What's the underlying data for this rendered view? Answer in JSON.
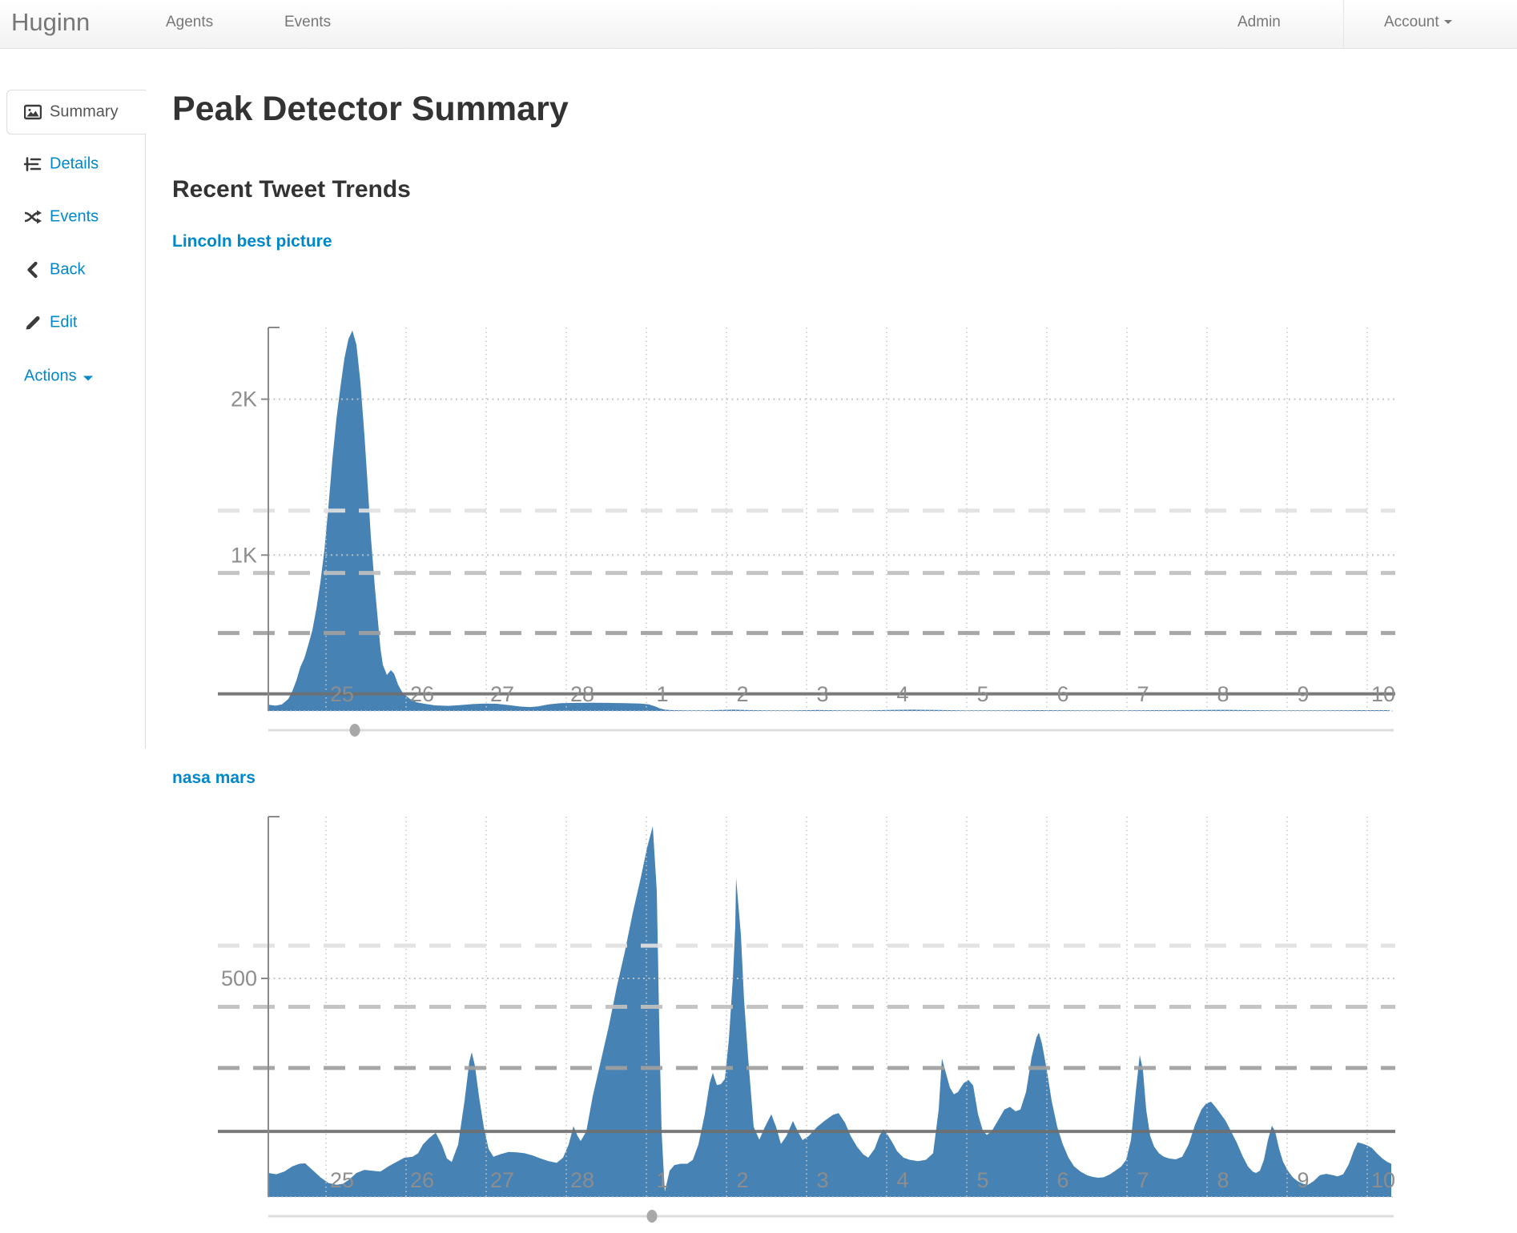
{
  "navbar": {
    "brand": "Huginn",
    "links": [
      {
        "label": "Agents"
      },
      {
        "label": "Events"
      }
    ],
    "right": [
      {
        "label": "Admin"
      },
      {
        "label": "Account"
      }
    ]
  },
  "sidebar": {
    "items": [
      {
        "label": "Summary",
        "icon": "picture-icon",
        "active": true
      },
      {
        "label": "Details",
        "icon": "details-icon"
      },
      {
        "label": "Events",
        "icon": "shuffle-icon"
      },
      {
        "label": "Back",
        "icon": "chevron-left-icon"
      },
      {
        "label": "Edit",
        "icon": "pencil-icon"
      },
      {
        "label": "Actions",
        "icon": "caret-down-icon",
        "dropdown": true
      }
    ]
  },
  "main": {
    "title": "Peak Detector Summary",
    "subtitle": "Recent Tweet Trends"
  },
  "colors": {
    "accent": "#0088cc",
    "area": "#4682B4",
    "axis": "#8a8a8a",
    "tick_label": "#8d8d8d",
    "grid_dotted": "#c8c8c8",
    "slider_track": "#dcdcdc",
    "slider_handle": "#a8a8a8"
  },
  "chart_data": [
    {
      "type": "area",
      "title": "Lincoln best picture",
      "x_axis": {
        "tick_labels": [
          "25",
          "26",
          "27",
          "28",
          "1",
          "2",
          "3",
          "4",
          "5",
          "6",
          "7",
          "8",
          "9",
          "10"
        ]
      },
      "y_axis": {
        "ticks": [
          {
            "label": "2K",
            "value": 2000
          },
          {
            "label": "1K",
            "value": 1000
          }
        ],
        "max": 2460
      },
      "thresholds": {
        "dashed": [
          {
            "value": 1285,
            "color": "#e1e1e1"
          },
          {
            "value": 885,
            "color": "#c0c0c0"
          },
          {
            "value": 500,
            "color": "#a0a0a0"
          }
        ],
        "average": {
          "value": 110,
          "color": "#6f6f6f"
        }
      },
      "peak_marker_day": 0.16,
      "points": [
        [
          -0.91,
          40
        ],
        [
          -0.83,
          34
        ],
        [
          -0.75,
          42
        ],
        [
          -0.67,
          77
        ],
        [
          -0.62,
          128
        ],
        [
          -0.57,
          195
        ],
        [
          -0.52,
          282
        ],
        [
          -0.47,
          339
        ],
        [
          -0.42,
          426
        ],
        [
          -0.37,
          518
        ],
        [
          -0.32,
          656
        ],
        [
          -0.27,
          826
        ],
        [
          -0.22,
          1031
        ],
        [
          -0.17,
          1308
        ],
        [
          -0.12,
          1615
        ],
        [
          -0.07,
          1872
        ],
        [
          -0.02,
          2077
        ],
        [
          0.03,
          2262
        ],
        [
          0.08,
          2385
        ],
        [
          0.13,
          2441
        ],
        [
          0.18,
          2349
        ],
        [
          0.23,
          2108
        ],
        [
          0.28,
          1769
        ],
        [
          0.33,
          1374
        ],
        [
          0.36,
          1118
        ],
        [
          0.41,
          795
        ],
        [
          0.45,
          569
        ],
        [
          0.48,
          400
        ],
        [
          0.51,
          297
        ],
        [
          0.56,
          231
        ],
        [
          0.61,
          262
        ],
        [
          0.65,
          240
        ],
        [
          0.7,
          169
        ],
        [
          0.76,
          113
        ],
        [
          0.85,
          77
        ],
        [
          0.93,
          56
        ],
        [
          1.03,
          46
        ],
        [
          1.16,
          36
        ],
        [
          1.33,
          33
        ],
        [
          1.48,
          38
        ],
        [
          1.63,
          44
        ],
        [
          1.78,
          48
        ],
        [
          1.93,
          46
        ],
        [
          2.08,
          38
        ],
        [
          2.23,
          28
        ],
        [
          2.35,
          25
        ],
        [
          2.45,
          30
        ],
        [
          2.58,
          42
        ],
        [
          2.73,
          50
        ],
        [
          2.93,
          52
        ],
        [
          3.13,
          53
        ],
        [
          3.33,
          52
        ],
        [
          3.53,
          50
        ],
        [
          3.73,
          48
        ],
        [
          3.83,
          42
        ],
        [
          3.91,
          30
        ],
        [
          3.97,
          16
        ],
        [
          4.03,
          8
        ],
        [
          4.13,
          5
        ],
        [
          4.33,
          4
        ],
        [
          4.53,
          4
        ],
        [
          4.73,
          6
        ],
        [
          4.88,
          8
        ],
        [
          4.98,
          7
        ],
        [
          5.13,
          5
        ],
        [
          5.33,
          4
        ],
        [
          5.63,
          4
        ],
        [
          5.93,
          6
        ],
        [
          6.23,
          4
        ],
        [
          6.53,
          4
        ],
        [
          6.83,
          6
        ],
        [
          7.13,
          8
        ],
        [
          7.43,
          6
        ],
        [
          7.73,
          4
        ],
        [
          8.23,
          4
        ],
        [
          8.73,
          5
        ],
        [
          9.23,
          4
        ],
        [
          9.73,
          4
        ],
        [
          10.23,
          5
        ],
        [
          10.73,
          6
        ],
        [
          11.03,
          7
        ],
        [
          11.33,
          5
        ],
        [
          11.73,
          4
        ],
        [
          12.23,
          4
        ],
        [
          12.73,
          5
        ],
        [
          13.08,
          5
        ]
      ]
    },
    {
      "type": "area",
      "title": "nasa mars",
      "x_axis": {
        "tick_labels": [
          "25",
          "26",
          "27",
          "28",
          "1",
          "2",
          "3",
          "4",
          "5",
          "6",
          "7",
          "8",
          "9",
          "10"
        ]
      },
      "y_axis": {
        "ticks": [
          {
            "label": "500",
            "value": 500
          }
        ],
        "max": 870
      },
      "thresholds": {
        "dashed": [
          {
            "value": 575,
            "color": "#e1e1e1"
          },
          {
            "value": 435,
            "color": "#c0c0c0"
          },
          {
            "value": 295,
            "color": "#a0a0a0"
          }
        ],
        "average": {
          "value": 150,
          "color": "#6f6f6f"
        }
      },
      "peak_marker_day": 3.87,
      "points": [
        [
          -0.92,
          55
        ],
        [
          -0.82,
          52
        ],
        [
          -0.72,
          58
        ],
        [
          -0.62,
          70
        ],
        [
          -0.53,
          76
        ],
        [
          -0.46,
          77
        ],
        [
          -0.37,
          62
        ],
        [
          -0.27,
          45
        ],
        [
          -0.17,
          32
        ],
        [
          -0.07,
          28
        ],
        [
          0.01,
          30
        ],
        [
          0.09,
          40
        ],
        [
          0.18,
          55
        ],
        [
          0.28,
          62
        ],
        [
          0.38,
          60
        ],
        [
          0.48,
          58
        ],
        [
          0.58,
          70
        ],
        [
          0.68,
          80
        ],
        [
          0.78,
          90
        ],
        [
          0.88,
          92
        ],
        [
          0.95,
          100
        ],
        [
          1.01,
          120
        ],
        [
          1.09,
          135
        ],
        [
          1.17,
          147
        ],
        [
          1.25,
          118
        ],
        [
          1.31,
          88
        ],
        [
          1.37,
          80
        ],
        [
          1.45,
          120
        ],
        [
          1.53,
          220
        ],
        [
          1.59,
          310
        ],
        [
          1.62,
          331
        ],
        [
          1.66,
          300
        ],
        [
          1.71,
          230
        ],
        [
          1.77,
          160
        ],
        [
          1.83,
          110
        ],
        [
          1.89,
          92
        ],
        [
          1.98,
          98
        ],
        [
          2.08,
          103
        ],
        [
          2.18,
          102
        ],
        [
          2.28,
          100
        ],
        [
          2.38,
          95
        ],
        [
          2.48,
          88
        ],
        [
          2.58,
          82
        ],
        [
          2.68,
          78
        ],
        [
          2.76,
          90
        ],
        [
          2.83,
          120
        ],
        [
          2.89,
          162
        ],
        [
          2.94,
          140
        ],
        [
          2.98,
          128
        ],
        [
          3.05,
          150
        ],
        [
          3.13,
          230
        ],
        [
          3.23,
          310
        ],
        [
          3.33,
          390
        ],
        [
          3.43,
          480
        ],
        [
          3.53,
          560
        ],
        [
          3.63,
          650
        ],
        [
          3.73,
          730
        ],
        [
          3.81,
          800
        ],
        [
          3.88,
          848
        ],
        [
          3.93,
          700
        ],
        [
          3.96,
          400
        ],
        [
          3.99,
          150
        ],
        [
          4.03,
          12
        ],
        [
          4.09,
          60
        ],
        [
          4.15,
          73
        ],
        [
          4.23,
          76
        ],
        [
          4.31,
          76
        ],
        [
          4.38,
          85
        ],
        [
          4.45,
          120
        ],
        [
          4.53,
          190
        ],
        [
          4.59,
          260
        ],
        [
          4.63,
          284
        ],
        [
          4.68,
          256
        ],
        [
          4.73,
          258
        ],
        [
          4.78,
          270
        ],
        [
          4.83,
          360
        ],
        [
          4.88,
          500
        ],
        [
          4.91,
          620
        ],
        [
          4.92,
          730
        ],
        [
          4.98,
          600
        ],
        [
          5.02,
          450
        ],
        [
          5.07,
          320
        ],
        [
          5.14,
          160
        ],
        [
          5.21,
          131
        ],
        [
          5.28,
          160
        ],
        [
          5.36,
          189
        ],
        [
          5.42,
          160
        ],
        [
          5.48,
          121
        ],
        [
          5.55,
          140
        ],
        [
          5.63,
          174
        ],
        [
          5.69,
          150
        ],
        [
          5.75,
          130
        ],
        [
          5.83,
          140
        ],
        [
          5.93,
          160
        ],
        [
          6.03,
          175
        ],
        [
          6.13,
          188
        ],
        [
          6.2,
          192
        ],
        [
          6.28,
          170
        ],
        [
          6.35,
          140
        ],
        [
          6.43,
          115
        ],
        [
          6.51,
          97
        ],
        [
          6.57,
          90
        ],
        [
          6.65,
          110
        ],
        [
          6.71,
          140
        ],
        [
          6.76,
          155
        ],
        [
          6.82,
          140
        ],
        [
          6.87,
          125
        ],
        [
          6.93,
          105
        ],
        [
          7.01,
          90
        ],
        [
          7.09,
          85
        ],
        [
          7.19,
          82
        ],
        [
          7.29,
          85
        ],
        [
          7.38,
          100
        ],
        [
          7.45,
          200
        ],
        [
          7.49,
          317
        ],
        [
          7.53,
          290
        ],
        [
          7.59,
          250
        ],
        [
          7.64,
          235
        ],
        [
          7.69,
          240
        ],
        [
          7.76,
          260
        ],
        [
          7.82,
          268
        ],
        [
          7.88,
          255
        ],
        [
          7.94,
          190
        ],
        [
          8.0,
          152
        ],
        [
          8.05,
          142
        ],
        [
          8.11,
          150
        ],
        [
          8.19,
          175
        ],
        [
          8.27,
          200
        ],
        [
          8.34,
          206
        ],
        [
          8.41,
          196
        ],
        [
          8.47,
          200
        ],
        [
          8.54,
          240
        ],
        [
          8.61,
          320
        ],
        [
          8.67,
          365
        ],
        [
          8.7,
          376
        ],
        [
          8.74,
          350
        ],
        [
          8.8,
          290
        ],
        [
          8.86,
          220
        ],
        [
          8.93,
          160
        ],
        [
          9.0,
          120
        ],
        [
          9.07,
          90
        ],
        [
          9.14,
          70
        ],
        [
          9.22,
          58
        ],
        [
          9.3,
          50
        ],
        [
          9.37,
          46
        ],
        [
          9.44,
          44
        ],
        [
          9.51,
          45
        ],
        [
          9.59,
          52
        ],
        [
          9.67,
          62
        ],
        [
          9.73,
          70
        ],
        [
          9.79,
          85
        ],
        [
          9.85,
          130
        ],
        [
          9.91,
          240
        ],
        [
          9.96,
          325
        ],
        [
          10.0,
          290
        ],
        [
          10.04,
          200
        ],
        [
          10.09,
          140
        ],
        [
          10.14,
          115
        ],
        [
          10.2,
          100
        ],
        [
          10.26,
          92
        ],
        [
          10.33,
          88
        ],
        [
          10.41,
          86
        ],
        [
          10.49,
          92
        ],
        [
          10.57,
          120
        ],
        [
          10.65,
          165
        ],
        [
          10.73,
          200
        ],
        [
          10.79,
          214
        ],
        [
          10.85,
          218
        ],
        [
          10.91,
          205
        ],
        [
          10.97,
          190
        ],
        [
          11.03,
          175
        ],
        [
          11.1,
          150
        ],
        [
          11.17,
          125
        ],
        [
          11.24,
          95
        ],
        [
          11.31,
          70
        ],
        [
          11.37,
          58
        ],
        [
          11.41,
          55
        ],
        [
          11.46,
          60
        ],
        [
          11.51,
          85
        ],
        [
          11.56,
          130
        ],
        [
          11.61,
          163
        ],
        [
          11.65,
          150
        ],
        [
          11.7,
          110
        ],
        [
          11.75,
          80
        ],
        [
          11.81,
          60
        ],
        [
          11.87,
          45
        ],
        [
          11.93,
          36
        ],
        [
          12.0,
          30
        ],
        [
          12.06,
          28
        ],
        [
          12.13,
          36
        ],
        [
          12.21,
          50
        ],
        [
          12.29,
          53
        ],
        [
          12.37,
          50
        ],
        [
          12.43,
          47
        ],
        [
          12.5,
          52
        ],
        [
          12.57,
          75
        ],
        [
          12.63,
          105
        ],
        [
          12.68,
          125
        ],
        [
          12.74,
          122
        ],
        [
          12.8,
          118
        ],
        [
          12.86,
          112
        ],
        [
          12.92,
          100
        ],
        [
          12.99,
          88
        ],
        [
          13.05,
          80
        ],
        [
          13.1,
          76
        ]
      ]
    }
  ]
}
